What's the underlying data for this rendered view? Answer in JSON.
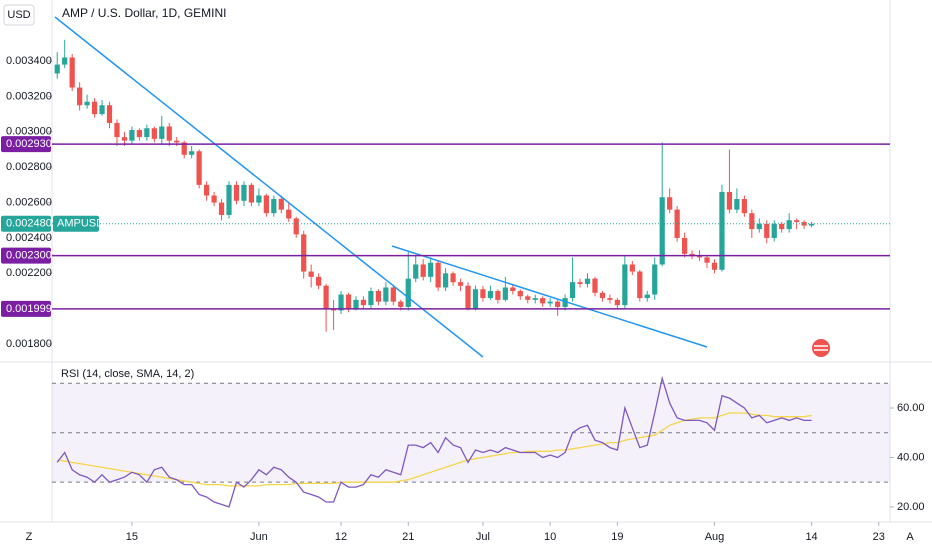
{
  "ui": {
    "currency": "USD",
    "zoom_button": "Z",
    "scale_button": "A"
  },
  "chart_data": [
    {
      "type": "candlestick",
      "title": "AMP / U.S. Dollar, 1D, GEMINI",
      "up_color": "#26a69a",
      "down_color": "#ef5350",
      "x": [
        0,
        1,
        2,
        3,
        4,
        5,
        6,
        7,
        8,
        9,
        10,
        11,
        12,
        13,
        14,
        15,
        16,
        17,
        18,
        19,
        20,
        21,
        22,
        23,
        24,
        25,
        26,
        27,
        28,
        29,
        30,
        31,
        32,
        33,
        34,
        35,
        36,
        37,
        38,
        39,
        40,
        41,
        42,
        43,
        44,
        45,
        46,
        47,
        48,
        49,
        50,
        51,
        52,
        53,
        54,
        55,
        56,
        57,
        58,
        59,
        60,
        61,
        62,
        63,
        64,
        65,
        66,
        67,
        68,
        69,
        70,
        71,
        72,
        73,
        74,
        75,
        76,
        77,
        78,
        79,
        80,
        81,
        82,
        83,
        84,
        85,
        86,
        87,
        88,
        89,
        90,
        91,
        92,
        93,
        94,
        95,
        96,
        97,
        98,
        99,
        100,
        101
      ],
      "open": [
        0.00333,
        0.00338,
        0.00342,
        0.00325,
        0.00315,
        0.00317,
        0.0031,
        0.00315,
        0.00305,
        0.00297,
        0.00295,
        0.00301,
        0.00297,
        0.00302,
        0.00296,
        0.00303,
        0.00295,
        0.00294,
        0.00287,
        0.00289,
        0.0027,
        0.00264,
        0.0026,
        0.00253,
        0.0027,
        0.00261,
        0.0027,
        0.0026,
        0.00264,
        0.00254,
        0.00262,
        0.00256,
        0.00251,
        0.00242,
        0.00221,
        0.00218,
        0.00213,
        0.002,
        0.00199,
        0.00208,
        0.002,
        0.00205,
        0.00202,
        0.0021,
        0.00204,
        0.00212,
        0.00204,
        0.00201,
        0.00217,
        0.00225,
        0.00218,
        0.00226,
        0.00212,
        0.0022,
        0.00215,
        0.00213,
        0.002,
        0.00211,
        0.00206,
        0.0021,
        0.00205,
        0.00212,
        0.0021,
        0.00207,
        0.00205,
        0.00206,
        0.00203,
        0.00204,
        0.00201,
        0.00206,
        0.00215,
        0.00214,
        0.00217,
        0.00209,
        0.00206,
        0.00205,
        0.00202,
        0.00225,
        0.00221,
        0.00206,
        0.00208,
        0.00225,
        0.00263,
        0.00256,
        0.0024,
        0.00231,
        0.0023,
        0.00229,
        0.00226,
        0.00222,
        0.00266,
        0.00256,
        0.00262,
        0.00254,
        0.00245,
        0.00248,
        0.0024,
        0.00248,
        0.00245,
        0.0025,
        0.00249,
        0.00247
      ],
      "close": [
        0.00338,
        0.00342,
        0.00325,
        0.00315,
        0.00317,
        0.0031,
        0.00315,
        0.00305,
        0.00297,
        0.00295,
        0.00301,
        0.00297,
        0.00302,
        0.00296,
        0.00303,
        0.00295,
        0.00294,
        0.00287,
        0.00289,
        0.0027,
        0.00264,
        0.0026,
        0.00253,
        0.0027,
        0.00261,
        0.0027,
        0.0026,
        0.00264,
        0.00254,
        0.00262,
        0.00256,
        0.00251,
        0.00242,
        0.00221,
        0.00218,
        0.00213,
        0.002,
        0.00199,
        0.00208,
        0.002,
        0.00205,
        0.00202,
        0.0021,
        0.00204,
        0.00212,
        0.00204,
        0.00201,
        0.00217,
        0.00225,
        0.00218,
        0.00226,
        0.00212,
        0.0022,
        0.00215,
        0.00213,
        0.002,
        0.00211,
        0.00206,
        0.0021,
        0.00205,
        0.00212,
        0.0021,
        0.00207,
        0.00205,
        0.00206,
        0.00203,
        0.00204,
        0.00201,
        0.00206,
        0.00215,
        0.00214,
        0.00217,
        0.00209,
        0.00206,
        0.00205,
        0.00202,
        0.00225,
        0.00221,
        0.00206,
        0.00208,
        0.00225,
        0.00263,
        0.00256,
        0.0024,
        0.00231,
        0.0023,
        0.00229,
        0.00226,
        0.00222,
        0.00266,
        0.00256,
        0.00262,
        0.00254,
        0.00245,
        0.00248,
        0.0024,
        0.00248,
        0.00245,
        0.0025,
        0.00249,
        0.00247,
        0.00248
      ],
      "high": [
        0.00345,
        0.00352,
        0.00344,
        0.00328,
        0.00321,
        0.00319,
        0.00318,
        0.00317,
        0.00307,
        0.003,
        0.00303,
        0.00302,
        0.00304,
        0.00303,
        0.00309,
        0.00305,
        0.00297,
        0.00295,
        0.00292,
        0.0029,
        0.00272,
        0.00266,
        0.00262,
        0.00272,
        0.00272,
        0.00272,
        0.00271,
        0.00268,
        0.00265,
        0.00264,
        0.00264,
        0.0026,
        0.00252,
        0.00244,
        0.00225,
        0.0022,
        0.00214,
        0.00205,
        0.0021,
        0.00209,
        0.00207,
        0.00207,
        0.00212,
        0.00211,
        0.00215,
        0.00213,
        0.00205,
        0.00232,
        0.0023,
        0.00228,
        0.00229,
        0.00227,
        0.00223,
        0.00221,
        0.00217,
        0.00215,
        0.00213,
        0.00213,
        0.00213,
        0.00211,
        0.00218,
        0.00214,
        0.00211,
        0.00208,
        0.00208,
        0.00207,
        0.00206,
        0.00205,
        0.00208,
        0.00229,
        0.00217,
        0.0022,
        0.00218,
        0.0021,
        0.00208,
        0.00206,
        0.0023,
        0.00227,
        0.00222,
        0.0021,
        0.00229,
        0.00294,
        0.00268,
        0.00258,
        0.00243,
        0.00233,
        0.00233,
        0.0023,
        0.00228,
        0.0027,
        0.0029,
        0.00268,
        0.00264,
        0.00256,
        0.00251,
        0.0025,
        0.0025,
        0.00249,
        0.00254,
        0.00251,
        0.0025,
        0.00249
      ],
      "low": [
        0.0033,
        0.00336,
        0.00323,
        0.00312,
        0.00313,
        0.00308,
        0.00309,
        0.00302,
        0.00292,
        0.00292,
        0.00293,
        0.00295,
        0.00295,
        0.00294,
        0.00293,
        0.00292,
        0.00292,
        0.00285,
        0.00285,
        0.00268,
        0.00261,
        0.00258,
        0.0025,
        0.00251,
        0.00259,
        0.00258,
        0.00258,
        0.00258,
        0.00252,
        0.00252,
        0.00254,
        0.00249,
        0.0024,
        0.00217,
        0.00212,
        0.00211,
        0.00187,
        0.00188,
        0.00197,
        0.00198,
        0.00199,
        0.002,
        0.002,
        0.00202,
        0.00202,
        0.00202,
        0.00199,
        0.00199,
        0.00215,
        0.00216,
        0.00215,
        0.0021,
        0.0021,
        0.00213,
        0.0021,
        0.00199,
        0.00199,
        0.00204,
        0.00205,
        0.00203,
        0.00204,
        0.00208,
        0.00205,
        0.00203,
        0.00203,
        0.00201,
        0.00201,
        0.00196,
        0.00199,
        0.00204,
        0.00212,
        0.00212,
        0.00207,
        0.00204,
        0.00203,
        0.002,
        0.002,
        0.00219,
        0.00204,
        0.00204,
        0.00205,
        0.00224,
        0.00254,
        0.00238,
        0.00229,
        0.00228,
        0.00227,
        0.00223,
        0.0022,
        0.00221,
        0.00254,
        0.00254,
        0.00252,
        0.0024,
        0.00243,
        0.00237,
        0.00238,
        0.00243,
        0.00243,
        0.00245,
        0.00245,
        0.00246
      ],
      "xlim": [
        -0.7,
        111.5
      ],
      "xticks": [
        {
          "value": 10,
          "label": "15"
        },
        {
          "value": 27,
          "label": "Jun"
        },
        {
          "value": 38,
          "label": "12"
        },
        {
          "value": 47,
          "label": "21"
        },
        {
          "value": 57,
          "label": "Jul"
        },
        {
          "value": 66,
          "label": "10"
        },
        {
          "value": 75,
          "label": "19"
        },
        {
          "value": 88,
          "label": "Aug"
        },
        {
          "value": 101,
          "label": "14"
        },
        {
          "value": 110,
          "label": "23"
        }
      ],
      "ylim": [
        0.00171,
        0.003745
      ],
      "yticks": [
        {
          "value": 0.0034,
          "label": "0.003400"
        },
        {
          "value": 0.0032,
          "label": "0.003200"
        },
        {
          "value": 0.003,
          "label": "0.003000"
        },
        {
          "value": 0.0028,
          "label": "0.002800"
        },
        {
          "value": 0.0026,
          "label": "0.002600"
        },
        {
          "value": 0.0024,
          "label": "0.002400"
        },
        {
          "value": 0.0022,
          "label": "0.002200"
        },
        {
          "value": 0.0018,
          "label": "0.001800"
        }
      ],
      "levels": [
        {
          "value": 0.00293,
          "label": "0.002930"
        },
        {
          "value": 0.0023,
          "label": "0.002300"
        },
        {
          "value": 0.001999,
          "label": "0.001999"
        }
      ],
      "level_color": "#7b1fa2",
      "last_price": {
        "value": 0.00248,
        "label": "0.002480",
        "symbol": "AMPUSD"
      },
      "last_color": "#26a69a"
    },
    {
      "type": "line",
      "title": "RSI (14, close, SMA, 14, 2)",
      "x": [
        0,
        1,
        2,
        3,
        4,
        5,
        6,
        7,
        8,
        9,
        10,
        11,
        12,
        13,
        14,
        15,
        16,
        17,
        18,
        19,
        20,
        21,
        22,
        23,
        24,
        25,
        26,
        27,
        28,
        29,
        30,
        31,
        32,
        33,
        34,
        35,
        36,
        37,
        38,
        39,
        40,
        41,
        42,
        43,
        44,
        45,
        46,
        47,
        48,
        49,
        50,
        51,
        52,
        53,
        54,
        55,
        56,
        57,
        58,
        59,
        60,
        61,
        62,
        63,
        64,
        65,
        66,
        67,
        68,
        69,
        70,
        71,
        72,
        73,
        74,
        75,
        76,
        77,
        78,
        79,
        80,
        81,
        82,
        83,
        84,
        85,
        86,
        87,
        88,
        89,
        90,
        91,
        92,
        93,
        94,
        95,
        96,
        97,
        98,
        99,
        100,
        101
      ],
      "xlim": [
        -0.7,
        111.5
      ],
      "ylim": [
        14.7,
        77.4
      ],
      "yticks": [
        {
          "value": 60,
          "label": "60.00"
        },
        {
          "value": 40,
          "label": "40.00"
        },
        {
          "value": 20,
          "label": "20.00"
        }
      ],
      "bands": [
        70,
        50,
        30
      ],
      "band_color": "#9575cd",
      "series": [
        {
          "color": "#7e57c2",
          "values": [
            38,
            42,
            35,
            33,
            32,
            30,
            33,
            30,
            31,
            32,
            34,
            33,
            30,
            35,
            36,
            32,
            31,
            29,
            29,
            25,
            24,
            22,
            21,
            20,
            30,
            28,
            31,
            35,
            33,
            36,
            35,
            32,
            30,
            26,
            25,
            24,
            22,
            22,
            30,
            28,
            28,
            29,
            33,
            32,
            35,
            34,
            33,
            45,
            45,
            44,
            46,
            42,
            48,
            45,
            44,
            38,
            43,
            42,
            43,
            42,
            44,
            43,
            42,
            42,
            42,
            40,
            41,
            40,
            42,
            50,
            52,
            53,
            47,
            46,
            44,
            43,
            60,
            52,
            44,
            45,
            58,
            72,
            62,
            56,
            55,
            55,
            55,
            54,
            51,
            65,
            64,
            62,
            60,
            56,
            57,
            54,
            55,
            56,
            55,
            56,
            55,
            55
          ]
        },
        {
          "color": "#f6d54a",
          "values": [
            39,
            38.5,
            38,
            37.5,
            37,
            36.5,
            36,
            35.5,
            35,
            34.5,
            34,
            33.5,
            33,
            32.5,
            32,
            31.5,
            31,
            30.5,
            30,
            29.5,
            29,
            29,
            29,
            28.5,
            28.5,
            28.5,
            28.5,
            28.5,
            29,
            29,
            29,
            29,
            29.5,
            29.5,
            29.5,
            29.5,
            29.5,
            29.5,
            30,
            30,
            30,
            30,
            30,
            30,
            30,
            30,
            30.5,
            31,
            32,
            33,
            34,
            35,
            36,
            37,
            38,
            39,
            39.5,
            40,
            40.5,
            41,
            41.5,
            42,
            42,
            42.5,
            42.5,
            42.5,
            42.5,
            43,
            43,
            43.5,
            44,
            44.5,
            45,
            45.5,
            46,
            46,
            47,
            47.5,
            48,
            48.5,
            49,
            51,
            53,
            54,
            55,
            55.5,
            56,
            56,
            56,
            57,
            58,
            58,
            58,
            57.5,
            57,
            57,
            56.5,
            56.5,
            56.5,
            56.5,
            56.5,
            57
          ]
        }
      ]
    }
  ]
}
